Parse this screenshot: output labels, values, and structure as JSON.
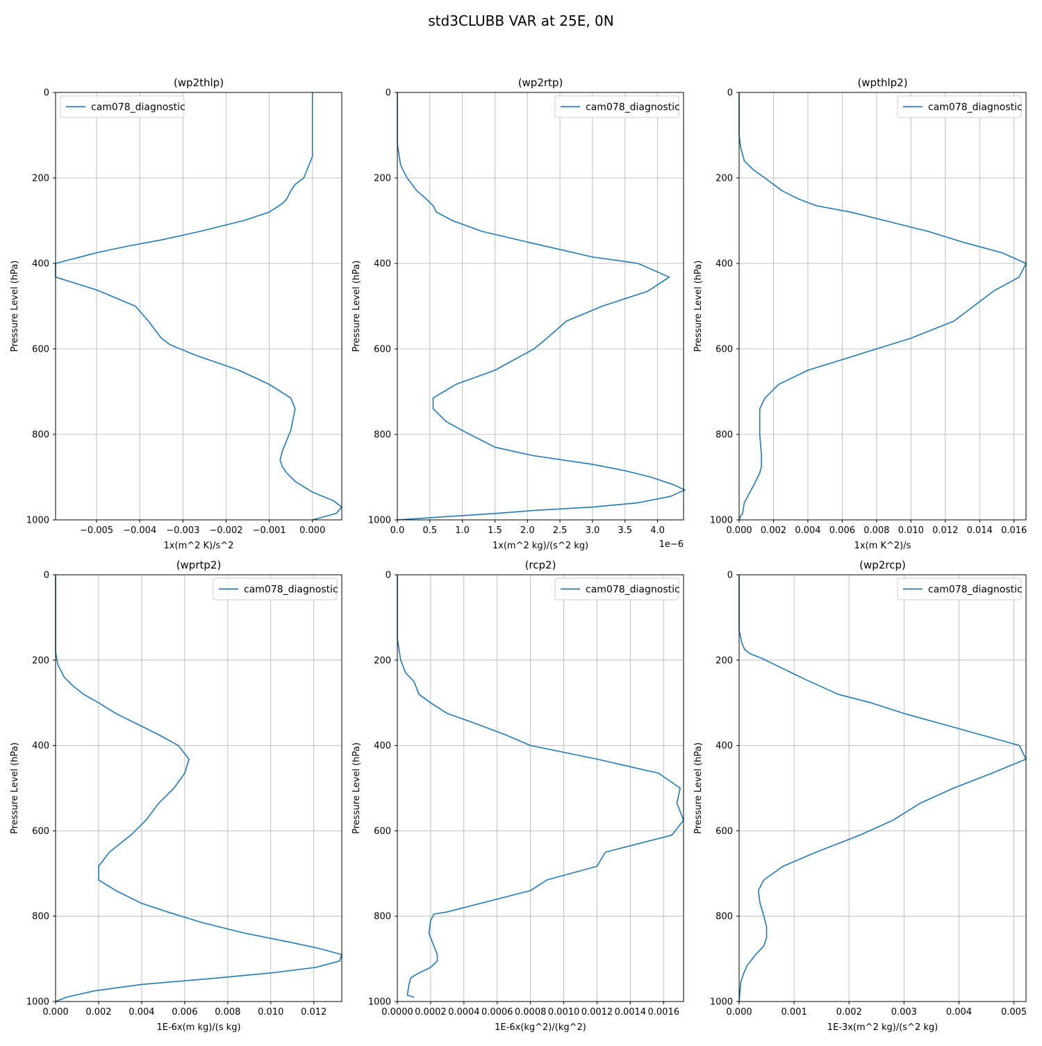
{
  "figure": {
    "suptitle": "std3CLUBB VAR at 25E, 0N"
  },
  "chart_data": [
    {
      "type": "line",
      "title": "(wp2thlp)",
      "xlabel": "1x(m^2 K)/s^2",
      "ylabel": "Pressure Level (hPa)",
      "xlim": [
        -0.00595,
        0.00068
      ],
      "ylim": [
        1000,
        0
      ],
      "xticks": [
        -0.005,
        -0.004,
        -0.003,
        -0.002,
        -0.001,
        0.0
      ],
      "xtick_labels": [
        "−0.005",
        "−0.004",
        "−0.003",
        "−0.002",
        "−0.001",
        "0.000"
      ],
      "yticks": [
        0,
        200,
        400,
        600,
        800,
        1000
      ],
      "ytick_labels": [
        "0",
        "200",
        "400",
        "600",
        "800",
        "1000"
      ],
      "offset_label": "",
      "grid": true,
      "legend_loc": "upper-left",
      "series": [
        {
          "name": "cam078_diagnostic",
          "color": "#1f77b4",
          "x": [
            0.0,
            0.0,
            0.0,
            0.0,
            0.0,
            -0.0002,
            -0.0004,
            -0.0005,
            -0.0006,
            -0.0007,
            -0.001,
            -0.0016,
            -0.0026,
            -0.0035,
            -0.0043,
            -0.005,
            -0.00595,
            -0.00595,
            -0.005,
            -0.0041,
            -0.0038,
            -0.0035,
            -0.0033,
            -0.0027,
            -0.0017,
            -0.001,
            -0.0005,
            -0.0004,
            -0.0005,
            -0.0007,
            -0.00075,
            -0.0007,
            -0.0006,
            -0.0004,
            0.0,
            0.00048,
            0.00068,
            0.00055,
            0.0
          ],
          "y": [
            0,
            50,
            100,
            140,
            150,
            200,
            215,
            230,
            250,
            260,
            280,
            300,
            325,
            345,
            360,
            375,
            400,
            432,
            462,
            500,
            535,
            575,
            590,
            615,
            650,
            683,
            715,
            740,
            790,
            840,
            860,
            875,
            890,
            910,
            935,
            955,
            970,
            985,
            1000
          ]
        }
      ]
    },
    {
      "type": "line",
      "title": "(wp2rtp)",
      "xlabel": "1x(m^2 kg)/(s^2 kg)",
      "ylabel": "Pressure Level (hPa)",
      "xlim": [
        0,
        4.4
      ],
      "ylim": [
        1000,
        0
      ],
      "xticks": [
        0,
        0.5,
        1.0,
        1.5,
        2.0,
        2.5,
        3.0,
        3.5,
        4.0
      ],
      "xtick_labels": [
        "0.0",
        "0.5",
        "1.0",
        "1.5",
        "2.0",
        "2.5",
        "3.0",
        "3.5",
        "4.0"
      ],
      "yticks": [
        0,
        200,
        400,
        600,
        800,
        1000
      ],
      "ytick_labels": [
        "0",
        "200",
        "400",
        "600",
        "800",
        "1000"
      ],
      "offset_label": "1e−6",
      "grid": true,
      "legend_loc": "upper-right",
      "series": [
        {
          "name": "cam078_diagnostic",
          "color": "#1f77b4",
          "x": [
            0.0,
            0.0,
            0.05,
            0.15,
            0.3,
            0.45,
            0.55,
            0.6,
            0.85,
            1.3,
            2.0,
            3.0,
            3.7,
            4.18,
            3.85,
            3.15,
            2.6,
            2.3,
            2.1,
            1.5,
            0.9,
            0.55,
            0.55,
            0.75,
            1.05,
            1.5,
            2.1,
            3.0,
            3.5,
            3.9,
            4.25,
            4.42,
            4.42,
            4.2,
            3.7,
            3.0,
            2.1,
            1.5,
            0.5,
            0.0
          ],
          "y": [
            0,
            120,
            170,
            200,
            230,
            250,
            265,
            280,
            300,
            325,
            350,
            385,
            400,
            432,
            465,
            500,
            535,
            575,
            600,
            650,
            683,
            715,
            740,
            770,
            795,
            830,
            850,
            870,
            885,
            900,
            918,
            930,
            930,
            945,
            960,
            970,
            978,
            985,
            995,
            1000
          ]
        }
      ]
    },
    {
      "type": "line",
      "title": "(wpthlp2)",
      "xlabel": "1x(m K^2)/s",
      "ylabel": "Pressure Level (hPa)",
      "xlim": [
        0,
        0.0167
      ],
      "ylim": [
        1000,
        0
      ],
      "xticks": [
        0,
        0.002,
        0.004,
        0.006,
        0.008,
        0.01,
        0.012,
        0.014,
        0.016
      ],
      "xtick_labels": [
        "0.000",
        "0.002",
        "0.004",
        "0.006",
        "0.008",
        "0.010",
        "0.012",
        "0.014",
        "0.016"
      ],
      "yticks": [
        0,
        200,
        400,
        600,
        800,
        1000
      ],
      "ytick_labels": [
        "0",
        "200",
        "400",
        "600",
        "800",
        "1000"
      ],
      "offset_label": "",
      "grid": true,
      "legend_loc": "upper-right",
      "series": [
        {
          "name": "cam078_diagnostic",
          "color": "#1f77b4",
          "x": [
            0.0,
            0.0,
            0.0001,
            0.0003,
            0.0008,
            0.0015,
            0.0025,
            0.0035,
            0.0045,
            0.0065,
            0.0085,
            0.011,
            0.013,
            0.0153,
            0.0167,
            0.0163,
            0.0148,
            0.0125,
            0.01,
            0.0068,
            0.004,
            0.0023,
            0.0015,
            0.0012,
            0.0012,
            0.0013,
            0.0013,
            0.0012,
            0.0009,
            0.0005,
            0.0003,
            0.0002,
            0.0001,
            0.0
          ],
          "y": [
            0,
            100,
            130,
            160,
            180,
            200,
            230,
            250,
            265,
            280,
            300,
            325,
            350,
            375,
            400,
            432,
            465,
            535,
            575,
            615,
            650,
            683,
            715,
            740,
            800,
            850,
            875,
            890,
            915,
            945,
            960,
            985,
            990,
            1000
          ]
        }
      ]
    },
    {
      "type": "line",
      "title": "(wprtp2)",
      "xlabel": "1E-6x(m kg)/(s kg)",
      "ylabel": "Pressure Level (hPa)",
      "xlim": [
        0,
        0.0133
      ],
      "ylim": [
        1000,
        0
      ],
      "xticks": [
        0,
        0.002,
        0.004,
        0.006,
        0.008,
        0.01,
        0.012
      ],
      "xtick_labels": [
        "0.000",
        "0.002",
        "0.004",
        "0.006",
        "0.008",
        "0.010",
        "0.012"
      ],
      "yticks": [
        0,
        200,
        400,
        600,
        800,
        1000
      ],
      "ytick_labels": [
        "0",
        "200",
        "400",
        "600",
        "800",
        "1000"
      ],
      "offset_label": "",
      "grid": true,
      "legend_loc": "upper-right",
      "series": [
        {
          "name": "cam078_diagnostic",
          "color": "#1f77b4",
          "x": [
            0.0,
            0.0,
            0.0001,
            0.0004,
            0.0008,
            0.0013,
            0.002,
            0.0028,
            0.0038,
            0.0048,
            0.0057,
            0.0062,
            0.006,
            0.0055,
            0.0048,
            0.0042,
            0.0035,
            0.0025,
            0.002,
            0.002,
            0.0028,
            0.004,
            0.0052,
            0.0068,
            0.0088,
            0.0108,
            0.0122,
            0.0133,
            0.0132,
            0.0121,
            0.0102,
            0.0075,
            0.004,
            0.0018,
            0.0005,
            0.0
          ],
          "y": [
            0,
            180,
            210,
            240,
            260,
            280,
            300,
            325,
            350,
            375,
            400,
            432,
            465,
            500,
            535,
            575,
            610,
            650,
            683,
            715,
            740,
            770,
            790,
            815,
            840,
            860,
            875,
            890,
            905,
            920,
            932,
            945,
            960,
            975,
            990,
            1000
          ]
        }
      ]
    },
    {
      "type": "line",
      "title": "(rcp2)",
      "xlabel": "1E-6x(kg^2)/(kg^2)",
      "ylabel": "Pressure Level (hPa)",
      "xlim": [
        0,
        0.00172
      ],
      "ylim": [
        1000,
        0
      ],
      "xticks": [
        0,
        0.0002,
        0.0004,
        0.0006,
        0.0008,
        0.001,
        0.0012,
        0.0014,
        0.0016
      ],
      "xtick_labels": [
        "0.0000",
        "0.0002",
        "0.0004",
        "0.0006",
        "0.0008",
        "0.0010",
        "0.0012",
        "0.0014",
        "0.0016"
      ],
      "yticks": [
        0,
        200,
        400,
        600,
        800,
        1000
      ],
      "ytick_labels": [
        "0",
        "200",
        "400",
        "600",
        "800",
        "1000"
      ],
      "offset_label": "",
      "grid": true,
      "legend_loc": "upper-right",
      "series": [
        {
          "name": "cam078_diagnostic",
          "color": "#1f77b4",
          "x": [
            0.0,
            0.0,
            2e-05,
            5e-05,
            0.0001,
            0.00013,
            0.0002,
            0.0003,
            0.00048,
            0.00065,
            0.0008,
            0.0012,
            0.00157,
            0.0017,
            0.00168,
            0.00172,
            0.00165,
            0.00125,
            0.0012,
            0.0009,
            0.0008,
            0.0005,
            0.0003,
            0.00022,
            0.0002,
            0.00019,
            0.0002,
            0.00022,
            0.00024,
            0.00024,
            0.0002,
            0.00012,
            8e-05,
            7e-05,
            6e-05,
            0.0001
          ],
          "y": [
            0,
            150,
            200,
            230,
            250,
            280,
            300,
            325,
            350,
            375,
            400,
            432,
            465,
            500,
            535,
            575,
            610,
            650,
            683,
            715,
            740,
            770,
            790,
            795,
            810,
            840,
            850,
            870,
            890,
            905,
            920,
            935,
            945,
            960,
            985,
            990
          ]
        }
      ]
    },
    {
      "type": "line",
      "title": "(wp2rcp)",
      "xlabel": "1E-3x(m^2 kg)/(s^2 kg)",
      "ylabel": "Pressure Level (hPa)",
      "xlim": [
        0,
        0.00522
      ],
      "ylim": [
        1000,
        0
      ],
      "xticks": [
        0,
        0.001,
        0.002,
        0.003,
        0.004,
        0.005
      ],
      "xtick_labels": [
        "0.000",
        "0.001",
        "0.002",
        "0.003",
        "0.004",
        "0.005"
      ],
      "yticks": [
        0,
        200,
        400,
        600,
        800,
        1000
      ],
      "ytick_labels": [
        "0",
        "200",
        "400",
        "600",
        "800",
        "1000"
      ],
      "offset_label": "",
      "grid": true,
      "legend_loc": "upper-right",
      "series": [
        {
          "name": "cam078_diagnostic",
          "color": "#1f77b4",
          "x": [
            0.0,
            0.0,
            5e-05,
            0.0001,
            0.0002,
            0.0004,
            0.0008,
            0.0012,
            0.0018,
            0.0024,
            0.003,
            0.0037,
            0.0044,
            0.0051,
            0.00522,
            0.0046,
            0.0039,
            0.0033,
            0.0028,
            0.0022,
            0.0014,
            0.0008,
            0.00045,
            0.00035,
            0.00038,
            0.00045,
            0.0005,
            0.0005,
            0.00045,
            0.0003,
            0.00015,
            8e-05,
            3e-05,
            0.0
          ],
          "y": [
            0,
            130,
            160,
            175,
            185,
            195,
            220,
            245,
            280,
            300,
            325,
            350,
            375,
            400,
            432,
            465,
            500,
            535,
            575,
            610,
            650,
            683,
            715,
            740,
            770,
            800,
            825,
            850,
            870,
            890,
            915,
            935,
            955,
            1000
          ]
        }
      ]
    }
  ]
}
